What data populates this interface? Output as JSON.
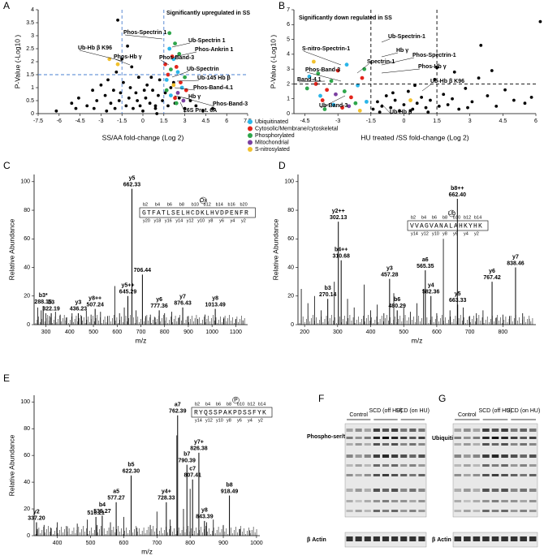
{
  "chart_data": [
    {
      "type": "scatter",
      "panel": "A",
      "xlabel": "SS/AA fold-change (Log 2)",
      "ylabel": "P-Value (-Log10 )",
      "xlim": [
        -7.5,
        7.5
      ],
      "xticks": [
        -7.5,
        -6,
        -4.5,
        -3,
        -1.5,
        0,
        1.5,
        3,
        4.5,
        6,
        7.5
      ],
      "ylim": [
        0,
        4
      ],
      "yticks": [
        0,
        0.5,
        1,
        1.5,
        2,
        2.5,
        3,
        3.5,
        4
      ],
      "thresholds": {
        "x": [
          -1.5,
          1.5
        ],
        "y": 1.5
      },
      "legend": "below",
      "series": [
        {
          "color": "#000000",
          "x": [
            -6.2,
            -5.1,
            -4.6,
            -4.0,
            -3.6,
            -3.3,
            -3.0,
            -2.7,
            -2.5,
            -2.3,
            -2.1,
            -1.9,
            -1.8,
            -1.6,
            -1.4,
            -1.2,
            -1.0,
            -0.9,
            -0.7,
            -0.5,
            -0.4,
            -0.2,
            0,
            0.2,
            0.3,
            0.5,
            0.7,
            0.9,
            1.1,
            1.2,
            1.4,
            1.6,
            1.8,
            2.0,
            2.3,
            2.6,
            3.0,
            3.4,
            3.8,
            4.3,
            5.0,
            -1.5,
            -0.8,
            0.1,
            0.6,
            -2.0,
            -3.5,
            -1.1,
            0.9,
            2.2,
            -4.8,
            -0.3,
            1.0,
            -1.7,
            -2.6
          ],
          "values": [
            0.1,
            0.4,
            0.6,
            0.3,
            0.9,
            0.5,
            1.1,
            0.7,
            1.3,
            0.4,
            0.9,
            1.6,
            3.6,
            0.8,
            1.2,
            0.3,
            0.6,
            1.0,
            0.2,
            0.8,
            0.5,
            0.3,
            0.1,
            0.6,
            1.1,
            0.4,
            0.9,
            0.2,
            0.7,
            1.3,
            0.5,
            0.8,
            0.3,
            1.0,
            0.4,
            0.6,
            0.2,
            0.5,
            0.3,
            0.1,
            0.2,
            2.1,
            1.8,
            0.9,
            1.4,
            0.2,
            0.2,
            2.6,
            0.3,
            1.2,
            0.2,
            1.4,
            0.0,
            0.5,
            0.1
          ]
        },
        {
          "name": "Ubiquitinated",
          "color": "#2bb5e8",
          "x": [
            1.9,
            2.2,
            2.5,
            1.7,
            2.8,
            2.0
          ],
          "values": [
            2.5,
            2.1,
            1.6,
            1.3,
            1.0,
            0.7
          ]
        },
        {
          "name": "Cytosolic/Membrane/cytoskeletal",
          "color": "#e3241b",
          "x": [
            2.1,
            2.4,
            1.8,
            2.7,
            3.1,
            2.3,
            1.6
          ],
          "values": [
            2.2,
            1.8,
            1.5,
            1.2,
            0.9,
            0.6,
            1.9
          ]
        },
        {
          "name": "Phosphorylated",
          "color": "#2ea64b",
          "x": [
            1.9,
            2.3,
            2.6,
            2.0,
            3.0,
            1.7,
            2.4
          ],
          "values": [
            3.1,
            2.7,
            2.3,
            1.7,
            1.4,
            0.9,
            0.4
          ]
        },
        {
          "name": "Mitochondrial",
          "color": "#7b3fa0",
          "x": [
            2.5,
            2.9
          ],
          "values": [
            0.8,
            0.5
          ]
        },
        {
          "name": "S-nitrosylated",
          "color": "#f2c12e",
          "x": [
            -2.4,
            -1.8,
            2.2
          ],
          "values": [
            2.1,
            1.9,
            1.1
          ]
        }
      ],
      "annotations": [
        "Significantly upregulated in SS",
        "Phos-Spectrin 1",
        "Ub-Spectrin 1",
        "Phos-Ankrin 1",
        "Phos-Band-3",
        "Ub-Spectrin",
        "Ub-145 Hb β",
        "Phos-Band-4.1",
        "Hb γ",
        "Phos-Band-3",
        "26S Prot. 6A",
        "Ub-Hb β K96",
        "Phos-Hb γ"
      ]
    },
    {
      "type": "scatter",
      "panel": "B",
      "xlabel": "HU treated /SS fold-change (Log 2)",
      "ylabel": "P-Value (-Log10 )",
      "xlim": [
        -5,
        6
      ],
      "xticks": [
        -4.5,
        -3,
        -1.5,
        0,
        1.5,
        3,
        4.5,
        6
      ],
      "ylim": [
        0,
        7
      ],
      "yticks": [
        0,
        1,
        2,
        3,
        4,
        5,
        6,
        7
      ],
      "thresholds": {
        "x": [
          -1.5,
          1.5
        ],
        "y": 2
      },
      "series": [
        {
          "color": "#000000",
          "x": [
            -1.4,
            -1.2,
            -1.0,
            -0.8,
            -0.6,
            -0.4,
            -0.2,
            0,
            0.2,
            0.4,
            0.6,
            0.8,
            1.0,
            1.2,
            1.4,
            1.6,
            1.8,
            2.0,
            2.2,
            2.5,
            2.8,
            3.1,
            3.4,
            3.8,
            4.2,
            4.6,
            5.0,
            5.5,
            3.5,
            6.2,
            1.5,
            0.5,
            -0.5,
            2.3,
            1.1,
            -1.1,
            0.3,
            2.9,
            4.0,
            5.8
          ],
          "values": [
            0.3,
            0.8,
            0.5,
            1.2,
            0.4,
            0.9,
            0.2,
            0.6,
            1.5,
            0.3,
            0.7,
            1.1,
            0.4,
            0.9,
            2.3,
            0.5,
            1.3,
            0.6,
            1.0,
            0.3,
            1.7,
            0.8,
            2.4,
            1.2,
            0.5,
            1.6,
            0.9,
            0.7,
            4.6,
            6.2,
            3.1,
            1.9,
            1.4,
            2.8,
            0.1,
            0.1,
            0.2,
            0.4,
            2.9,
            1.1
          ]
        },
        {
          "color": "#2bb5e8",
          "x": [
            -4.3,
            -3.8,
            -3.2,
            -2.6,
            -2.1,
            -1.7
          ],
          "values": [
            2.5,
            1.2,
            0.6,
            3.3,
            1.9,
            0.8
          ]
        },
        {
          "color": "#e3241b",
          "x": [
            -4.0,
            -3.5,
            -3.0,
            -2.4,
            -1.9,
            -2.8,
            -3.7
          ],
          "values": [
            2.0,
            1.6,
            2.9,
            1.1,
            2.4,
            0.4,
            0.9
          ]
        },
        {
          "color": "#2ea64b",
          "x": [
            -4.4,
            -3.9,
            -3.3,
            -2.7,
            -2.2,
            -1.8,
            -3.6
          ],
          "values": [
            1.7,
            2.7,
            2.2,
            1.5,
            0.7,
            3.0,
            0.3
          ]
        },
        {
          "color": "#7b3fa0",
          "x": [
            -3.1,
            -2.5
          ],
          "values": [
            1.3,
            0.5
          ]
        },
        {
          "color": "#f2c12e",
          "x": [
            -4.1,
            -2.0,
            0.3
          ],
          "values": [
            3.5,
            0.2,
            0.9
          ]
        }
      ],
      "annotations": [
        "Significantly down regulated in SS",
        "Ub-Spectrin-1",
        "Hb γ",
        "S-nitro-Spectrin-1",
        "Phos-Spectrin-1",
        "Spectrin-1",
        "Phos-Hb γ",
        "Phos-Band-3",
        "Band-4.1",
        "Ub-Hb β K96",
        "Ub-Band-3",
        "Ub-Hb β"
      ]
    },
    {
      "type": "spectrum",
      "panel": "C",
      "xlabel": "m/z",
      "ylabel": "Relative Abundance",
      "xlim": [
        250,
        1150
      ],
      "xticks": [
        300,
        400,
        500,
        600,
        700,
        800,
        900,
        1000,
        1100
      ],
      "ylim": [
        0,
        105
      ],
      "yticks": [
        0,
        20,
        40,
        60,
        80,
        100
      ],
      "series": [
        {
          "color": "#000000",
          "x": [
            265,
            280,
            300,
            315,
            340,
            360,
            385,
            410,
            450,
            470,
            490,
            530,
            560,
            590,
            610,
            630,
            680,
            720,
            740,
            760,
            800,
            830,
            860,
            900,
            940,
            970,
            1050,
            1100,
            1130
          ],
          "values": [
            12,
            10,
            8,
            6,
            9,
            7,
            5,
            8,
            6,
            10,
            7,
            9,
            6,
            27,
            8,
            12,
            10,
            6,
            7,
            5,
            8,
            9,
            5,
            6,
            4,
            7,
            5,
            4,
            3
          ]
        },
        {
          "color": "#000000",
          "x": [
            288.15,
            322.19,
            436.23,
            507.24,
            645.29,
            662.33,
            706.44,
            777.36,
            876.43,
            1013.49
          ],
          "x_labels": [
            "288.15",
            "322.19",
            "436.23",
            "507.24",
            "645.29",
            "662.33",
            "706.44",
            "777.36",
            "876.43",
            "1013.49"
          ],
          "values": [
            13,
            8,
            8,
            11,
            20,
            95,
            35,
            10,
            12,
            11
          ],
          "ions": [
            "b3*",
            "b3",
            "y3",
            "y8++",
            "y5++",
            "y5",
            null,
            "y6",
            "y7",
            "y8"
          ]
        }
      ],
      "sequence": "GTFATLSELHCDKLHVDPENFR",
      "modification": "Ox",
      "ions_top": [
        "b2",
        "b4",
        "b6",
        "b8",
        "b10",
        "b12",
        "b14",
        "b16",
        "b20"
      ],
      "ions_bottom": [
        "y20",
        "y18",
        "y16",
        "y14",
        "y12",
        "y10",
        "y8",
        "y6",
        "y4",
        "y2"
      ]
    },
    {
      "type": "spectrum",
      "panel": "D",
      "xlabel": "m/z",
      "ylabel": "Relative Abundance",
      "xlim": [
        180,
        900
      ],
      "xticks": [
        200,
        300,
        400,
        500,
        600,
        700,
        800
      ],
      "ylim": [
        0,
        105
      ],
      "yticks": [
        0,
        20,
        40,
        60,
        80,
        100
      ],
      "series": [
        {
          "color": "#000000",
          "x": [
            190,
            210,
            230,
            250,
            290,
            330,
            350,
            380,
            400,
            420,
            440,
            470,
            500,
            520,
            540,
            560,
            600,
            620,
            640,
            680,
            700,
            720,
            740,
            780,
            800,
            820,
            860,
            880
          ],
          "values": [
            25,
            15,
            20,
            10,
            30,
            18,
            12,
            28,
            10,
            14,
            8,
            22,
            12,
            9,
            15,
            25,
            8,
            60,
            10,
            12,
            6,
            8,
            10,
            5,
            7,
            6,
            8,
            4
          ]
        },
        {
          "color": "#000000",
          "x": [
            270.14,
            302.13,
            310.68,
            457.28,
            480.29,
            565.35,
            582.36,
            662.4,
            663.33,
            767.42,
            838.46
          ],
          "x_labels": [
            "270.14",
            "302.13",
            "310.68",
            "457.28",
            "480.29",
            "565.35",
            "582.36",
            "662.40",
            "663.33",
            "767.42",
            "838.46"
          ],
          "values": [
            18,
            72,
            45,
            32,
            10,
            38,
            20,
            88,
            14,
            30,
            40
          ],
          "ions": [
            "b3",
            "y2++",
            "b4++",
            "y3",
            "b6",
            "a6",
            "y4",
            "b8++",
            "y5",
            "y6",
            "y7"
          ]
        }
      ],
      "sequence": "VVAGVANALAHKYHK",
      "modification": "Ub",
      "ions_top": [
        "b2",
        "b4",
        "b6",
        "b8",
        "b10",
        "b12",
        "b14"
      ],
      "ions_bottom": [
        "y14",
        "y12",
        "y10",
        "y8",
        "y6",
        "y4",
        "y2"
      ]
    },
    {
      "type": "spectrum",
      "panel": "E",
      "xlabel": "m/z",
      "ylabel": "Relative Abundance",
      "xlim": [
        330,
        1010
      ],
      "xticks": [
        400,
        500,
        600,
        700,
        800,
        900,
        1000
      ],
      "ylim": [
        0,
        105
      ],
      "yticks": [
        0,
        20,
        40,
        60,
        80,
        100
      ],
      "series": [
        {
          "color": "#000000",
          "x": [
            340,
            360,
            380,
            400,
            430,
            460,
            490,
            520,
            560,
            600,
            640,
            680,
            700,
            740,
            760,
            780,
            800,
            850,
            870,
            900,
            950,
            980
          ],
          "values": [
            5,
            8,
            6,
            10,
            7,
            9,
            12,
            8,
            10,
            14,
            6,
            8,
            18,
            12,
            75,
            20,
            35,
            10,
            12,
            8,
            5,
            4
          ]
        },
        {
          "color": "#000000",
          "x": [
            337.2,
            516.21,
            535.27,
            577.27,
            622.3,
            728.33,
            762.39,
            790.39,
            807.41,
            826.38,
            843.39,
            918.49
          ],
          "x_labels": [
            "337.20",
            "516.21",
            "535.27",
            "577.27",
            "622.30",
            "728.33",
            "762.39",
            "790.39",
            "807.41",
            "826.38",
            "843.39",
            "918.49"
          ],
          "values": [
            10,
            14,
            15,
            25,
            45,
            25,
            90,
            53,
            42,
            62,
            11,
            30
          ],
          "ions": [
            "y2",
            null,
            "b4",
            "a5",
            "b5",
            "y4+",
            "a7",
            "b7",
            "c7",
            "y7+",
            "y8",
            "b8"
          ]
        }
      ],
      "sequence": "RYQSSPAKPDSSFYK",
      "modification": "P",
      "ions_top": [
        "b2",
        "b4",
        "b6",
        "b8",
        "b10",
        "b12",
        "b14"
      ],
      "ions_bottom": [
        "y14",
        "y12",
        "y10",
        "y8",
        "y6",
        "y4",
        "y2"
      ]
    }
  ],
  "blots": [
    {
      "panel": "F",
      "groups": [
        "Control",
        "SCD (off HU)",
        "SCD (on HU)"
      ],
      "target": "Phospho-ser/thr",
      "loading": "β Actin"
    },
    {
      "panel": "G",
      "groups": [
        "Control",
        "SCD (off HU)",
        "SCD (on HU)"
      ],
      "target": "Ubiquitin",
      "loading": "β Actin"
    }
  ]
}
